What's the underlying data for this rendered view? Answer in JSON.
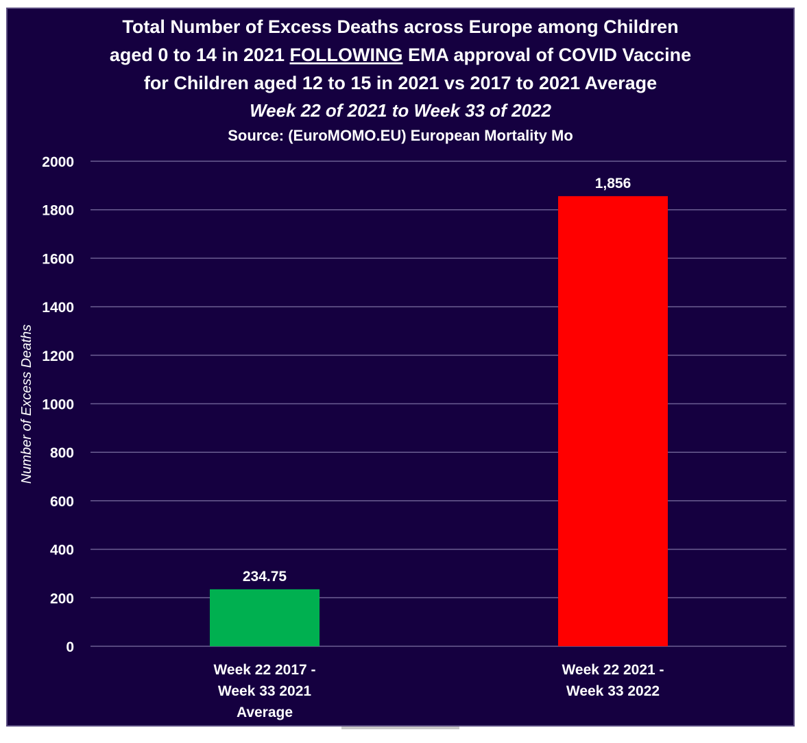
{
  "chart_data": {
    "type": "bar",
    "title_lines": [
      "Total Number of Excess Deaths across Europe among Children",
      "aged 0 to 14 in 2021 ",
      "FOLLOWING",
      " EMA approval of COVID Vaccine",
      "for Children aged 12 to 15 in 2021 vs 2017 to 2021 Average"
    ],
    "subtitle": "Week 22 of 2021 to Week 33 of 2022",
    "source": "Source: (EuroMOMO.EU) European Mortality Mo",
    "ylabel": "Number of Excess Deaths",
    "ylim": [
      0,
      2000
    ],
    "yticks": [
      "0",
      "200",
      "400",
      "600",
      "800",
      "1000",
      "1200",
      "1400",
      "1600",
      "1800",
      "2000"
    ],
    "grid": true,
    "categories": [
      [
        "Week 22 2017 -",
        "Week 33 2021",
        "Average"
      ],
      [
        "Week 22 2021 -",
        "Week 33 2022"
      ]
    ],
    "values": [
      234.75,
      1856
    ],
    "data_labels": [
      "234.75",
      "1,856"
    ],
    "colors": [
      "#00b050",
      "#ff0000"
    ],
    "background": "#150040"
  }
}
